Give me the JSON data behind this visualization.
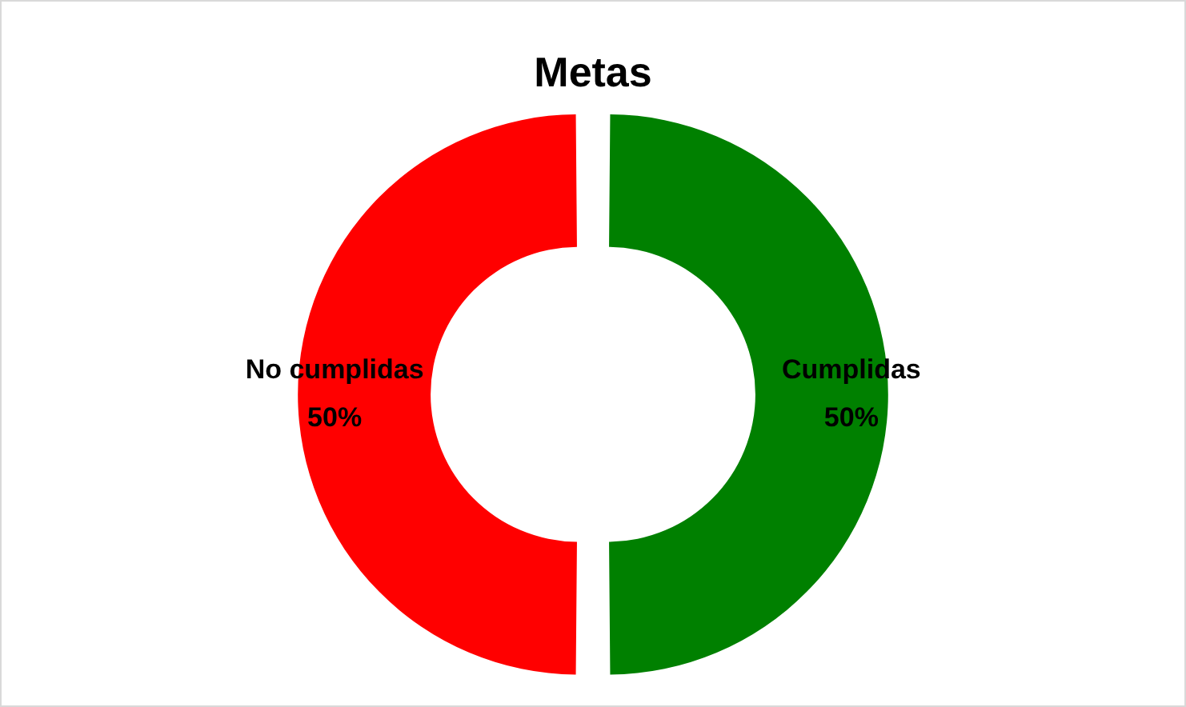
{
  "chart_data": {
    "type": "donut",
    "title": "Metas",
    "categories": [
      "Cumplidas",
      "No cumplidas"
    ],
    "values": [
      50,
      50
    ],
    "colors": [
      "#008000",
      "#ff0000"
    ],
    "value_labels": [
      "50%",
      "50%"
    ],
    "legend": false
  }
}
